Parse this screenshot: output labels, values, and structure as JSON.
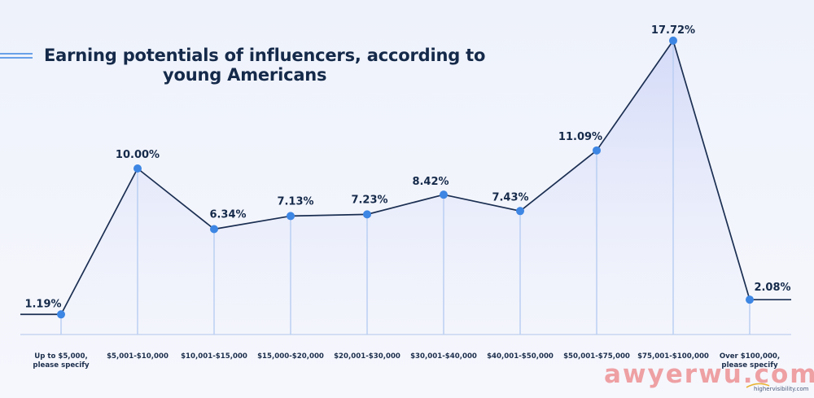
{
  "chart_data": {
    "type": "line",
    "title": "Earning potentials of influencers, according to young Americans",
    "title_lines": [
      "Earning potentials of influencers, according to",
      "young Americans"
    ],
    "categories": [
      "Up to $5,000, please specify",
      "$5,001-$10,000",
      "$10,001-$15,000",
      "$15,000-$20,000",
      "$20,001-$30,000",
      "$30,001-$40,000",
      "$40,001-$50,000",
      "$50,001-$75,000",
      "$75,001-$100,000",
      "Over $100,000, please specify"
    ],
    "category_lines": [
      [
        "Up to $5,000,",
        "please specify"
      ],
      [
        "$5,001-$10,000"
      ],
      [
        "$10,001-$15,000"
      ],
      [
        "$15,000-$20,000"
      ],
      [
        "$20,001-$30,000"
      ],
      [
        "$30,001-$40,000"
      ],
      [
        "$40,001-$50,000"
      ],
      [
        "$50,001-$75,000"
      ],
      [
        "$75,001-$100,000"
      ],
      [
        "Over $100,000,",
        "please specify"
      ]
    ],
    "values": [
      1.19,
      10.0,
      6.34,
      7.13,
      7.23,
      8.42,
      7.43,
      11.09,
      17.72,
      2.08
    ],
    "value_labels": [
      "1.19%",
      "10.00%",
      "6.34%",
      "7.13%",
      "7.23%",
      "8.42%",
      "7.43%",
      "11.09%",
      "17.72%",
      "2.08%"
    ],
    "xlabel": "",
    "ylabel": "",
    "ylim": [
      0,
      18
    ],
    "grid": false,
    "legend": "none"
  },
  "colors": {
    "line": "#1b2f52",
    "point": "#3d86e3",
    "drop_line": "#b7cdf2",
    "area_top": "#d6dcf8",
    "baseline": "#c8d6f0",
    "title": "#152a4a",
    "accent": "#3d86e3"
  },
  "watermark": {
    "main": "awyerwu.com",
    "sub": "highervisibility.com"
  }
}
